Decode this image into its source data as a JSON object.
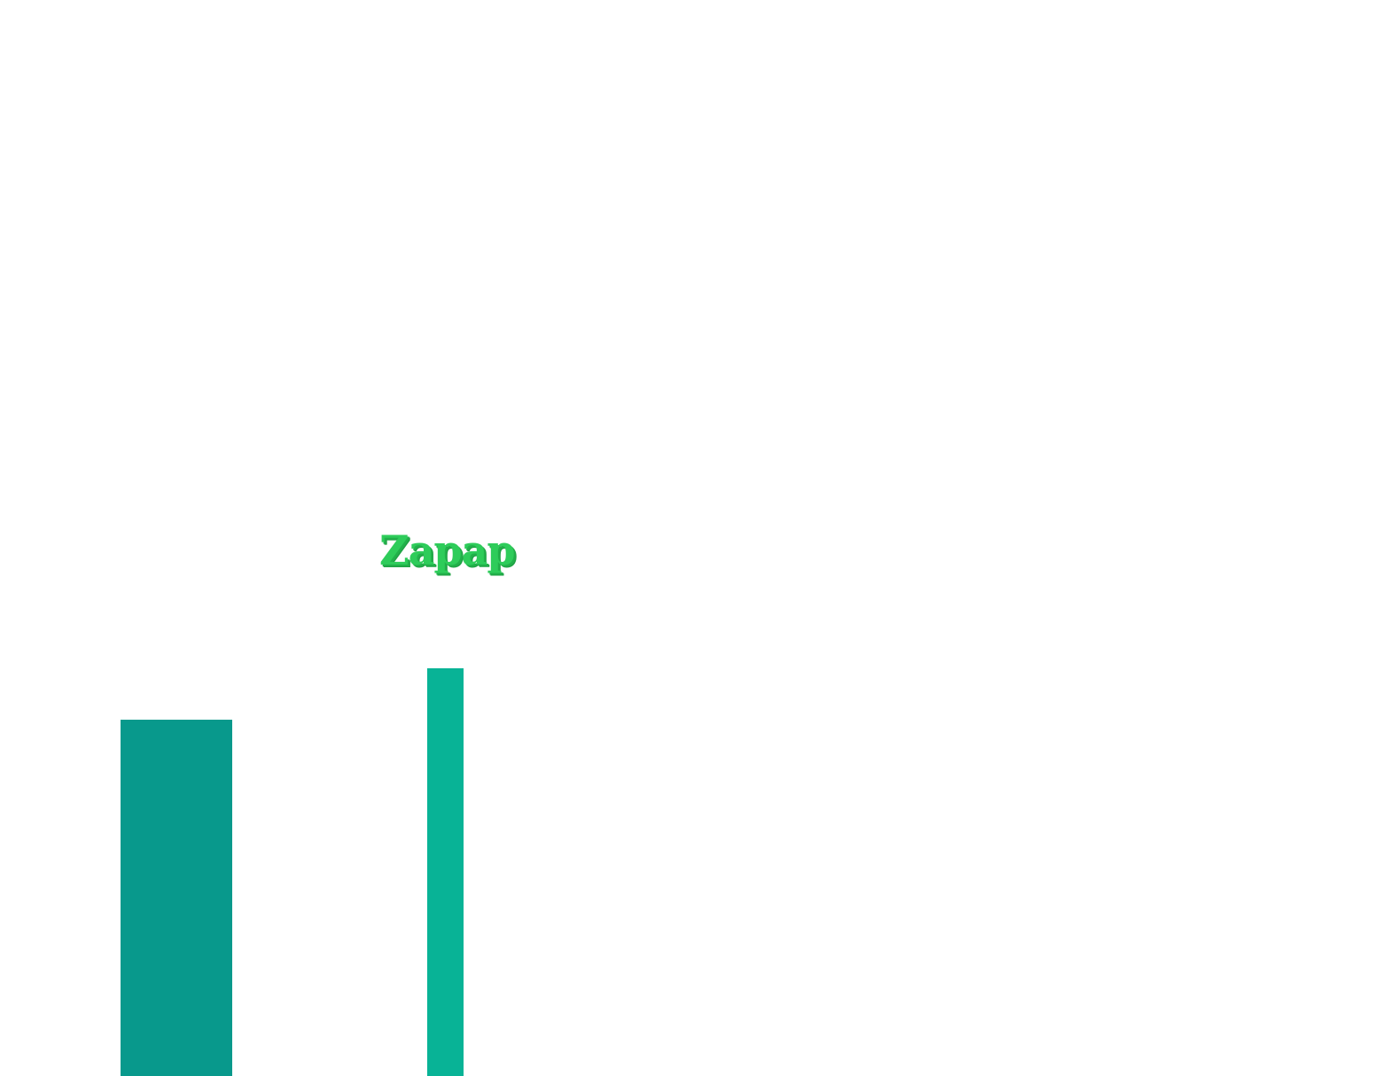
{
  "logo": {
    "text": "Zapap",
    "color": "#2ecc5a"
  },
  "decor": {
    "left_block_color": "#08998c",
    "right_block_color": "#08b396"
  }
}
